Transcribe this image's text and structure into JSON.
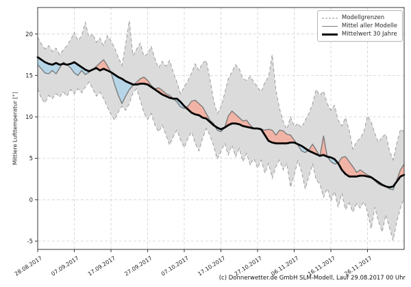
{
  "caption": "(c) Donnerwetter.de GmbH SLM-Modell, Lauf 29.08.2017 00 Uhr",
  "legend": {
    "items": [
      {
        "label": "Modellgrenzen",
        "style": "dashed-gray"
      },
      {
        "label": "Mittel aller Modelle",
        "style": "solid-gray"
      },
      {
        "label": "Mittelwert 30 Jahre",
        "style": "solid-black-thick"
      }
    ]
  },
  "axes": {
    "ylabel": "Mittlere Lufttemperatur [°]",
    "yticks": [
      20,
      15,
      10,
      5,
      0,
      -5
    ],
    "ylim": [
      -6,
      23.2
    ],
    "xlim": [
      0,
      100
    ],
    "xticks": [
      {
        "day": 0,
        "label": "28.08.2017"
      },
      {
        "day": 10,
        "label": "07.09.2017"
      },
      {
        "day": 20,
        "label": "17.09.2017"
      },
      {
        "day": 30,
        "label": "27.09.2017"
      },
      {
        "day": 40,
        "label": "07.10.2017"
      },
      {
        "day": 50,
        "label": "17.10.2017"
      },
      {
        "day": 60,
        "label": "27.10.2017"
      },
      {
        "day": 70,
        "label": "06.11.2017"
      },
      {
        "day": 80,
        "label": "16.11.2017"
      },
      {
        "day": 90,
        "label": "26.11.2017"
      }
    ]
  },
  "chart_data": {
    "type": "area",
    "x_unit": "days since 28.08.2017 (1-day step, index = day)",
    "x_count": 101,
    "grid": true,
    "legend_position": "upper right",
    "colors": {
      "band_fill": "#dbdbdb",
      "band_edge": "#9b9b9b",
      "above_fill": "#f1b3a5",
      "below_fill": "#b6d6e8",
      "mean_line": "#7a7a7a",
      "mean30_line": "#000000",
      "grid": "#cfcfcf",
      "spine": "#333333"
    },
    "series": [
      {
        "name": "Modellgrenzen max",
        "values": [
          19.6,
          18.8,
          18.2,
          18.6,
          17.9,
          18.3,
          17.5,
          18.1,
          18.6,
          19.3,
          20.2,
          19.2,
          19.8,
          21.4,
          19.6,
          20.0,
          19.0,
          19.5,
          18.6,
          19.8,
          19.2,
          18.3,
          17.2,
          16.2,
          18.8,
          21.6,
          17.4,
          18.2,
          18.9,
          17.3,
          17.6,
          18.5,
          17.0,
          15.9,
          16.7,
          16.1,
          16.8,
          15.4,
          14.2,
          12.8,
          13.6,
          14.4,
          15.3,
          16.4,
          15.6,
          16.5,
          16.8,
          14.6,
          12.0,
          10.4,
          11.2,
          12.8,
          14.6,
          15.4,
          16.3,
          15.8,
          14.6,
          14.4,
          14.9,
          14.2,
          13.6,
          13.0,
          14.2,
          14.8,
          17.5,
          13.2,
          11.0,
          9.4,
          8.5,
          10.0,
          8.8,
          9.2,
          8.7,
          9.6,
          10.4,
          11.6,
          13.3,
          12.6,
          13.1,
          11.6,
          10.8,
          11.4,
          9.6,
          8.9,
          9.9,
          8.4,
          6.1,
          7.0,
          7.4,
          8.2,
          10.1,
          9.4,
          8.0,
          6.9,
          7.6,
          7.9,
          5.9,
          4.8,
          6.8,
          8.5,
          8.2
        ]
      },
      {
        "name": "Modellgrenzen min",
        "values": [
          13.4,
          12.2,
          11.7,
          12.6,
          12.2,
          12.8,
          12.4,
          13.0,
          12.5,
          13.3,
          12.8,
          13.4,
          12.9,
          13.6,
          14.2,
          13.4,
          12.5,
          13.0,
          12.2,
          11.2,
          10.3,
          9.6,
          10.6,
          11.3,
          10.8,
          11.6,
          12.9,
          13.4,
          12.0,
          10.5,
          9.7,
          10.4,
          9.0,
          8.2,
          9.0,
          7.8,
          6.6,
          7.6,
          8.4,
          7.2,
          6.3,
          7.4,
          8.2,
          6.8,
          5.9,
          7.4,
          8.6,
          7.8,
          6.5,
          4.9,
          5.8,
          6.8,
          5.4,
          6.6,
          5.2,
          6.2,
          4.6,
          5.6,
          4.2,
          5.0,
          3.8,
          4.8,
          3.2,
          4.4,
          2.6,
          4.0,
          4.8,
          3.6,
          4.4,
          1.5,
          3.0,
          4.7,
          3.4,
          1.3,
          2.8,
          4.3,
          2.4,
          1.9,
          0.3,
          1.4,
          -0.1,
          1.0,
          -0.9,
          0.8,
          -1.2,
          -0.4,
          -1.5,
          -0.5,
          -1.0,
          -0.2,
          -1.5,
          -3.5,
          -0.9,
          -2.6,
          -3.9,
          -1.8,
          -3.4,
          -4.9,
          -2.6,
          -1.0,
          0.2
        ]
      },
      {
        "name": "Mittel aller Modelle",
        "values": [
          16.3,
          15.8,
          15.3,
          15.2,
          15.6,
          15.2,
          15.9,
          16.6,
          16.3,
          15.9,
          15.3,
          15.0,
          15.6,
          15.1,
          15.4,
          15.7,
          16.1,
          16.5,
          16.9,
          16.2,
          15.4,
          13.9,
          12.6,
          11.6,
          12.5,
          13.3,
          13.8,
          14.2,
          14.6,
          14.8,
          14.4,
          13.8,
          13.4,
          13.5,
          13.2,
          12.8,
          12.6,
          12.2,
          11.8,
          11.2,
          11.0,
          11.3,
          11.9,
          12.0,
          11.6,
          11.2,
          10.4,
          9.6,
          9.2,
          8.4,
          8.2,
          8.7,
          10.1,
          10.7,
          10.3,
          9.9,
          9.5,
          9.6,
          9.0,
          8.6,
          8.6,
          8.5,
          8.4,
          8.5,
          8.4,
          7.8,
          8.4,
          8.3,
          7.9,
          7.8,
          7.2,
          6.6,
          5.9,
          5.7,
          6.0,
          6.7,
          6.0,
          5.2,
          7.7,
          5.2,
          4.6,
          4.3,
          4.4,
          5.1,
          5.2,
          4.6,
          4.0,
          3.3,
          3.6,
          3.3,
          3.0,
          2.8,
          2.3,
          1.9,
          1.7,
          1.6,
          1.3,
          1.2,
          2.4,
          3.6,
          4.3
        ]
      },
      {
        "name": "Mittelwert 30 Jahre",
        "values": [
          17.2,
          16.9,
          16.6,
          16.4,
          16.3,
          16.5,
          16.3,
          16.4,
          16.3,
          16.4,
          16.6,
          16.3,
          16.0,
          15.7,
          15.5,
          15.7,
          15.9,
          15.6,
          15.8,
          15.6,
          15.4,
          15.1,
          14.8,
          14.6,
          14.3,
          14.1,
          13.9,
          13.9,
          14.0,
          14.0,
          13.9,
          13.6,
          13.3,
          13.0,
          12.7,
          12.5,
          12.3,
          12.2,
          12.2,
          11.8,
          11.3,
          10.9,
          10.5,
          10.3,
          10.2,
          9.9,
          9.8,
          9.4,
          9.0,
          8.7,
          8.5,
          8.7,
          9.0,
          9.2,
          9.2,
          9.1,
          8.9,
          8.8,
          8.7,
          8.6,
          8.6,
          8.5,
          7.8,
          7.1,
          6.9,
          6.8,
          6.8,
          6.8,
          6.8,
          6.9,
          6.9,
          6.7,
          6.5,
          6.2,
          5.9,
          5.7,
          5.5,
          5.3,
          5.4,
          5.2,
          5.1,
          4.9,
          4.4,
          3.6,
          3.1,
          2.8,
          2.8,
          2.8,
          2.9,
          2.9,
          2.8,
          2.7,
          2.4,
          2.1,
          1.8,
          1.6,
          1.5,
          1.6,
          2.2,
          2.8,
          3.0
        ]
      }
    ]
  }
}
